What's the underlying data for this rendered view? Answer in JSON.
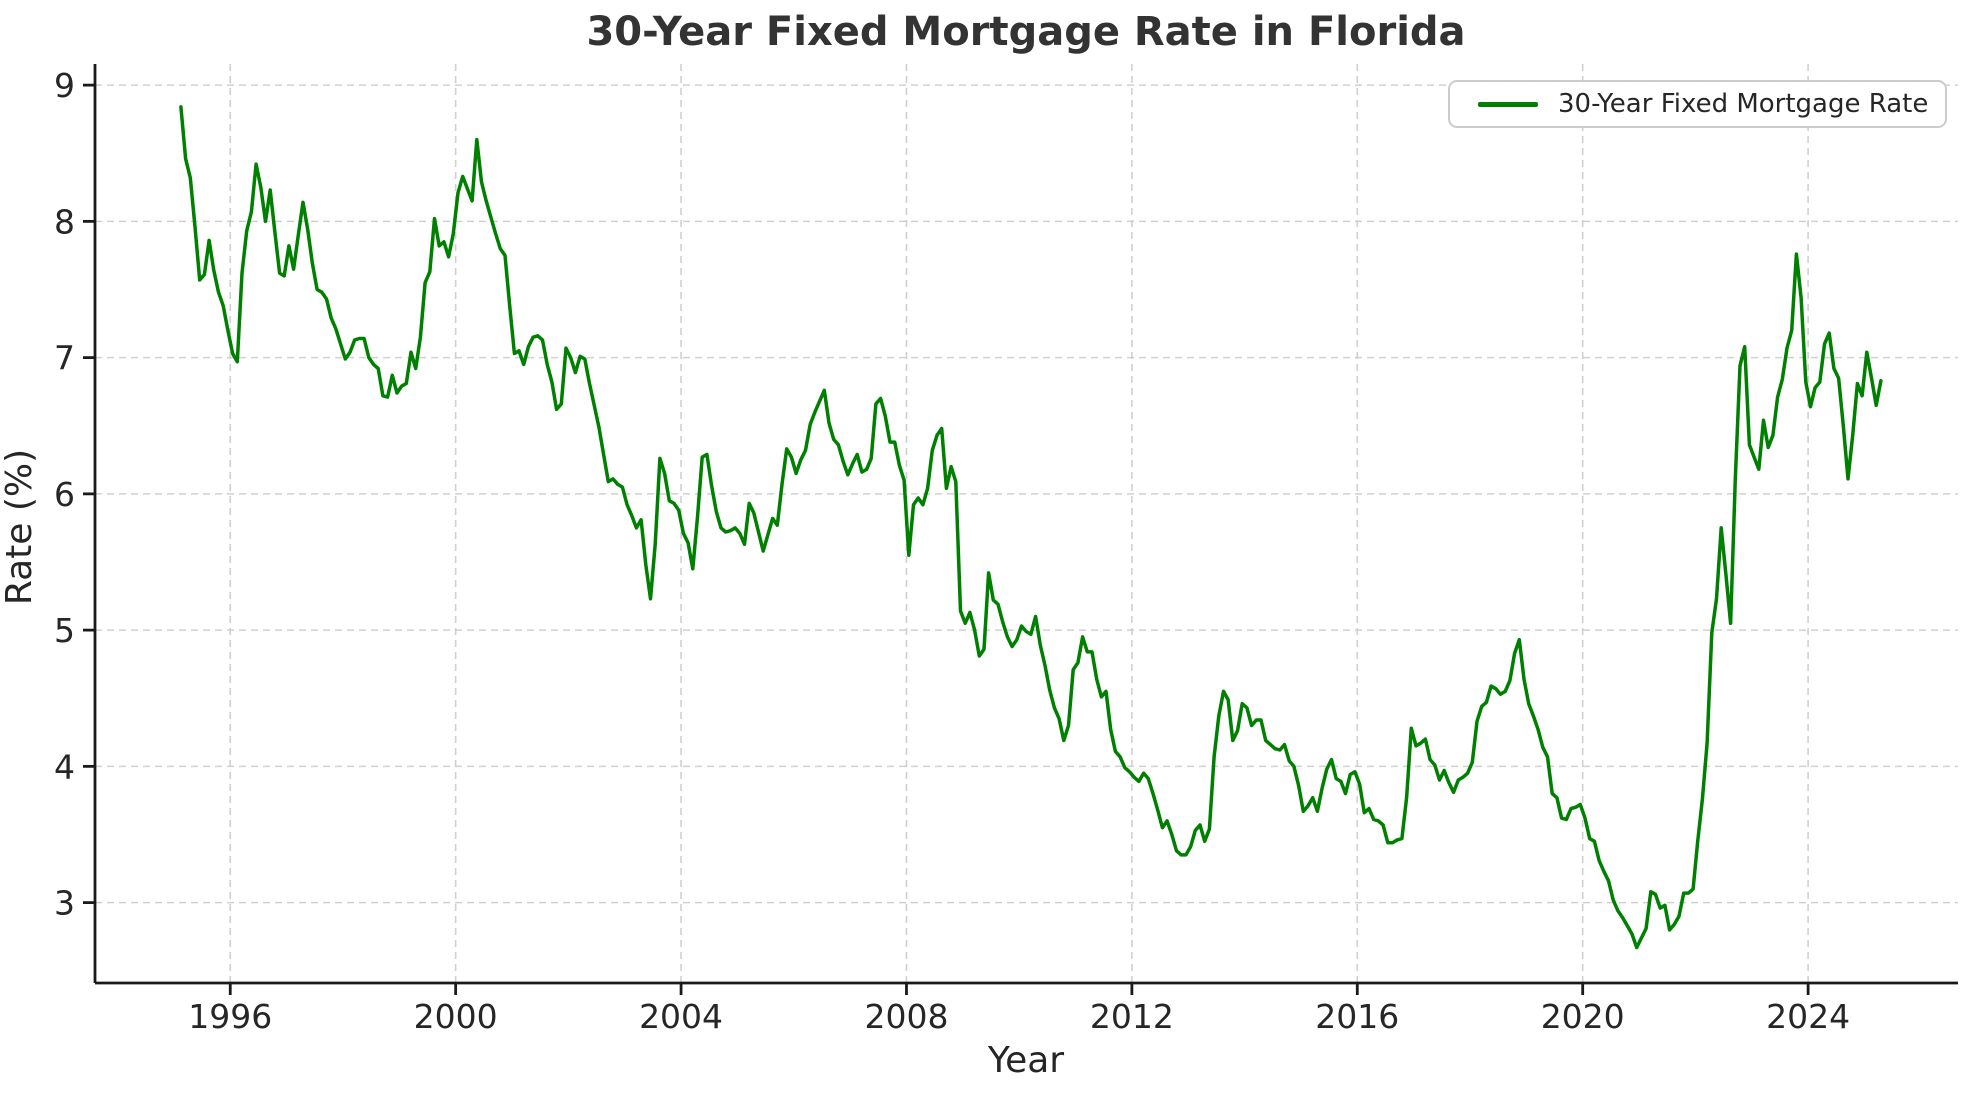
{
  "figure": {
    "title": "30-Year Fixed Mortgage Rate in Florida"
  },
  "axes": {
    "xlabel": "Year",
    "ylabel": "Rate (%)"
  },
  "legend": {
    "label": "30-Year Fixed Mortgage Rate"
  },
  "colors": {
    "line": "#008000",
    "grid": "#cccccc",
    "spine": "#1a1a1a",
    "tick": "#1a1a1a",
    "text": "#262626",
    "title": "#333333",
    "background": "#ffffff"
  },
  "chart_data": {
    "type": "line",
    "title": "30-Year Fixed Mortgage Rate in Florida",
    "xlabel": "Year",
    "ylabel": "Rate (%)",
    "legend_entries": [
      "30-Year Fixed Mortgage Rate"
    ],
    "legend_position": "upper right",
    "grid": true,
    "grid_style": "dashed",
    "xlim": [
      1993.6,
      2026.66
    ],
    "ylim": [
      2.41,
      9.155
    ],
    "x_tick_values": [
      1996,
      2000,
      2004,
      2008,
      2012,
      2016,
      2020,
      2024
    ],
    "x_tick_labels": [
      "1996",
      "2000",
      "2004",
      "2008",
      "2012",
      "2016",
      "2020",
      "2024"
    ],
    "y_tick_values": [
      3,
      4,
      5,
      6,
      7,
      8,
      9
    ],
    "y_tick_labels": [
      "3",
      "4",
      "5",
      "6",
      "7",
      "8",
      "9"
    ],
    "series": [
      {
        "name": "30-Year Fixed Mortgage Rate",
        "color": "#008000",
        "line_width": 3.5,
        "x_unit": "decimal year, monthly cadence (Feb 1995 - Apr 2025)",
        "x_start": 1995.125,
        "x_step": 0.0833333,
        "y": [
          8.84,
          8.46,
          8.32,
          7.96,
          7.57,
          7.61,
          7.86,
          7.64,
          7.48,
          7.38,
          7.2,
          7.03,
          6.97,
          7.62,
          7.93,
          8.07,
          8.42,
          8.25,
          8.0,
          8.23,
          7.92,
          7.62,
          7.6,
          7.82,
          7.65,
          7.9,
          8.14,
          7.94,
          7.69,
          7.5,
          7.48,
          7.43,
          7.29,
          7.21,
          7.1,
          6.99,
          7.04,
          7.13,
          7.14,
          7.14,
          7.0,
          6.95,
          6.92,
          6.72,
          6.71,
          6.87,
          6.74,
          6.79,
          6.81,
          7.04,
          6.92,
          7.15,
          7.55,
          7.63,
          8.02,
          7.82,
          7.85,
          7.74,
          7.91,
          8.21,
          8.33,
          8.24,
          8.15,
          8.6,
          8.29,
          8.15,
          8.03,
          7.91,
          7.8,
          7.75,
          7.38,
          7.03,
          7.05,
          6.95,
          7.08,
          7.15,
          7.16,
          7.13,
          6.95,
          6.82,
          6.62,
          6.66,
          7.07,
          7.0,
          6.89,
          7.01,
          6.99,
          6.81,
          6.65,
          6.49,
          6.29,
          6.09,
          6.11,
          6.07,
          6.05,
          5.92,
          5.84,
          5.75,
          5.81,
          5.48,
          5.23,
          5.63,
          6.26,
          6.15,
          5.95,
          5.93,
          5.88,
          5.71,
          5.64,
          5.45,
          5.83,
          6.27,
          6.29,
          6.06,
          5.87,
          5.75,
          5.72,
          5.73,
          5.75,
          5.71,
          5.63,
          5.93,
          5.86,
          5.72,
          5.58,
          5.7,
          5.82,
          5.77,
          6.07,
          6.33,
          6.27,
          6.15,
          6.25,
          6.32,
          6.51,
          6.6,
          6.68,
          6.76,
          6.52,
          6.4,
          6.36,
          6.24,
          6.14,
          6.22,
          6.29,
          6.16,
          6.18,
          6.26,
          6.66,
          6.7,
          6.57,
          6.38,
          6.38,
          6.21,
          6.1,
          5.55,
          5.92,
          5.97,
          5.92,
          6.04,
          6.32,
          6.43,
          6.48,
          6.04,
          6.2,
          6.09,
          5.14,
          5.05,
          5.13,
          5.0,
          4.81,
          4.86,
          5.42,
          5.22,
          5.19,
          5.06,
          4.95,
          4.88,
          4.93,
          5.03,
          4.99,
          4.97,
          5.1,
          4.89,
          4.74,
          4.56,
          4.43,
          4.35,
          4.19,
          4.3,
          4.71,
          4.76,
          4.95,
          4.84,
          4.84,
          4.64,
          4.51,
          4.55,
          4.27,
          4.11,
          4.07,
          3.99,
          3.96,
          3.92,
          3.89,
          3.95,
          3.91,
          3.8,
          3.68,
          3.55,
          3.6,
          3.5,
          3.38,
          3.35,
          3.35,
          3.41,
          3.53,
          3.57,
          3.45,
          3.54,
          4.07,
          4.37,
          4.55,
          4.49,
          4.19,
          4.26,
          4.46,
          4.43,
          4.3,
          4.34,
          4.34,
          4.19,
          4.16,
          4.13,
          4.12,
          4.16,
          4.04,
          4.0,
          3.86,
          3.67,
          3.71,
          3.77,
          3.67,
          3.84,
          3.98,
          4.05,
          3.91,
          3.89,
          3.8,
          3.94,
          3.96,
          3.87,
          3.66,
          3.69,
          3.61,
          3.6,
          3.57,
          3.44,
          3.44,
          3.46,
          3.47,
          3.77,
          4.28,
          4.15,
          4.17,
          4.2,
          4.05,
          4.01,
          3.9,
          3.97,
          3.88,
          3.81,
          3.9,
          3.92,
          3.95,
          4.03,
          4.33,
          4.44,
          4.47,
          4.59,
          4.57,
          4.53,
          4.55,
          4.63,
          4.83,
          4.93,
          4.64,
          4.46,
          4.37,
          4.27,
          4.14,
          4.07,
          3.8,
          3.77,
          3.62,
          3.61,
          3.69,
          3.7,
          3.72,
          3.62,
          3.47,
          3.45,
          3.31,
          3.23,
          3.16,
          3.02,
          2.94,
          2.89,
          2.83,
          2.77,
          2.67,
          2.74,
          2.81,
          3.08,
          3.06,
          2.96,
          2.98,
          2.8,
          2.84,
          2.9,
          3.07,
          3.07,
          3.1,
          3.45,
          3.76,
          4.17,
          4.98,
          5.23,
          5.75,
          5.41,
          5.05,
          6.11,
          6.94,
          7.08,
          6.36,
          6.27,
          6.18,
          6.54,
          6.34,
          6.43,
          6.71,
          6.84,
          7.07,
          7.2,
          7.76,
          7.44,
          6.82,
          6.64,
          6.78,
          6.82,
          7.1,
          7.18,
          6.92,
          6.85,
          6.5,
          6.11,
          6.43,
          6.81,
          6.72,
          7.04,
          6.85,
          6.65,
          6.83
        ]
      }
    ]
  }
}
